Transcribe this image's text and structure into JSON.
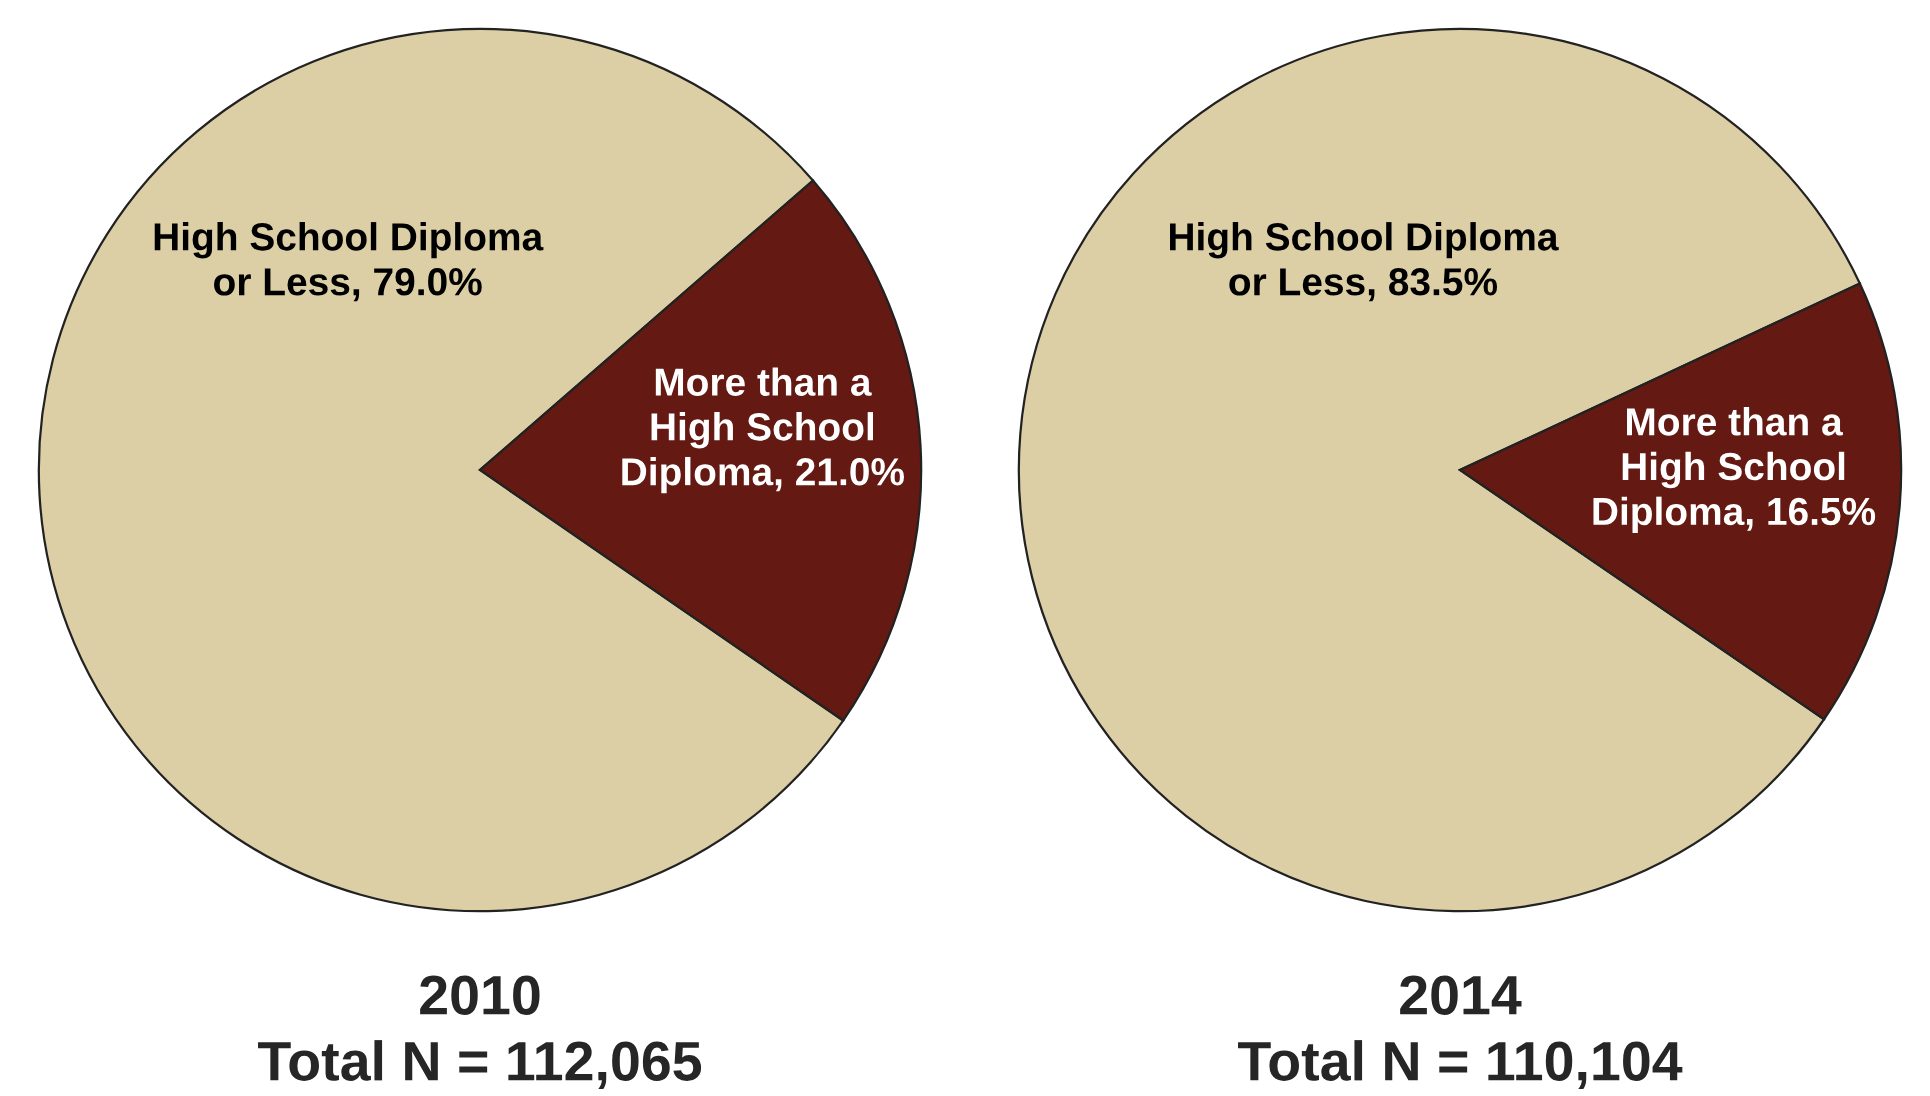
{
  "chart_data": [
    {
      "type": "pie",
      "title": "2010",
      "subtitle": "Total N = 112,065",
      "categories": [
        "High School Diploma\nor Less",
        "More than a\nHigh School\nDiploma"
      ],
      "values": [
        79.0,
        21.0
      ],
      "value_labels": [
        "79.0%",
        "21.0%"
      ],
      "colors": [
        "#dccfa5",
        "#641a12"
      ]
    },
    {
      "type": "pie",
      "title": "2014",
      "subtitle": "Total N = 110,104",
      "categories": [
        "High School Diploma\nor Less",
        "More than a\nHigh School\nDiploma"
      ],
      "values": [
        83.5,
        16.5
      ],
      "value_labels": [
        "83.5%",
        "16.5%"
      ],
      "colors": [
        "#dccfa5",
        "#641a12"
      ]
    }
  ]
}
